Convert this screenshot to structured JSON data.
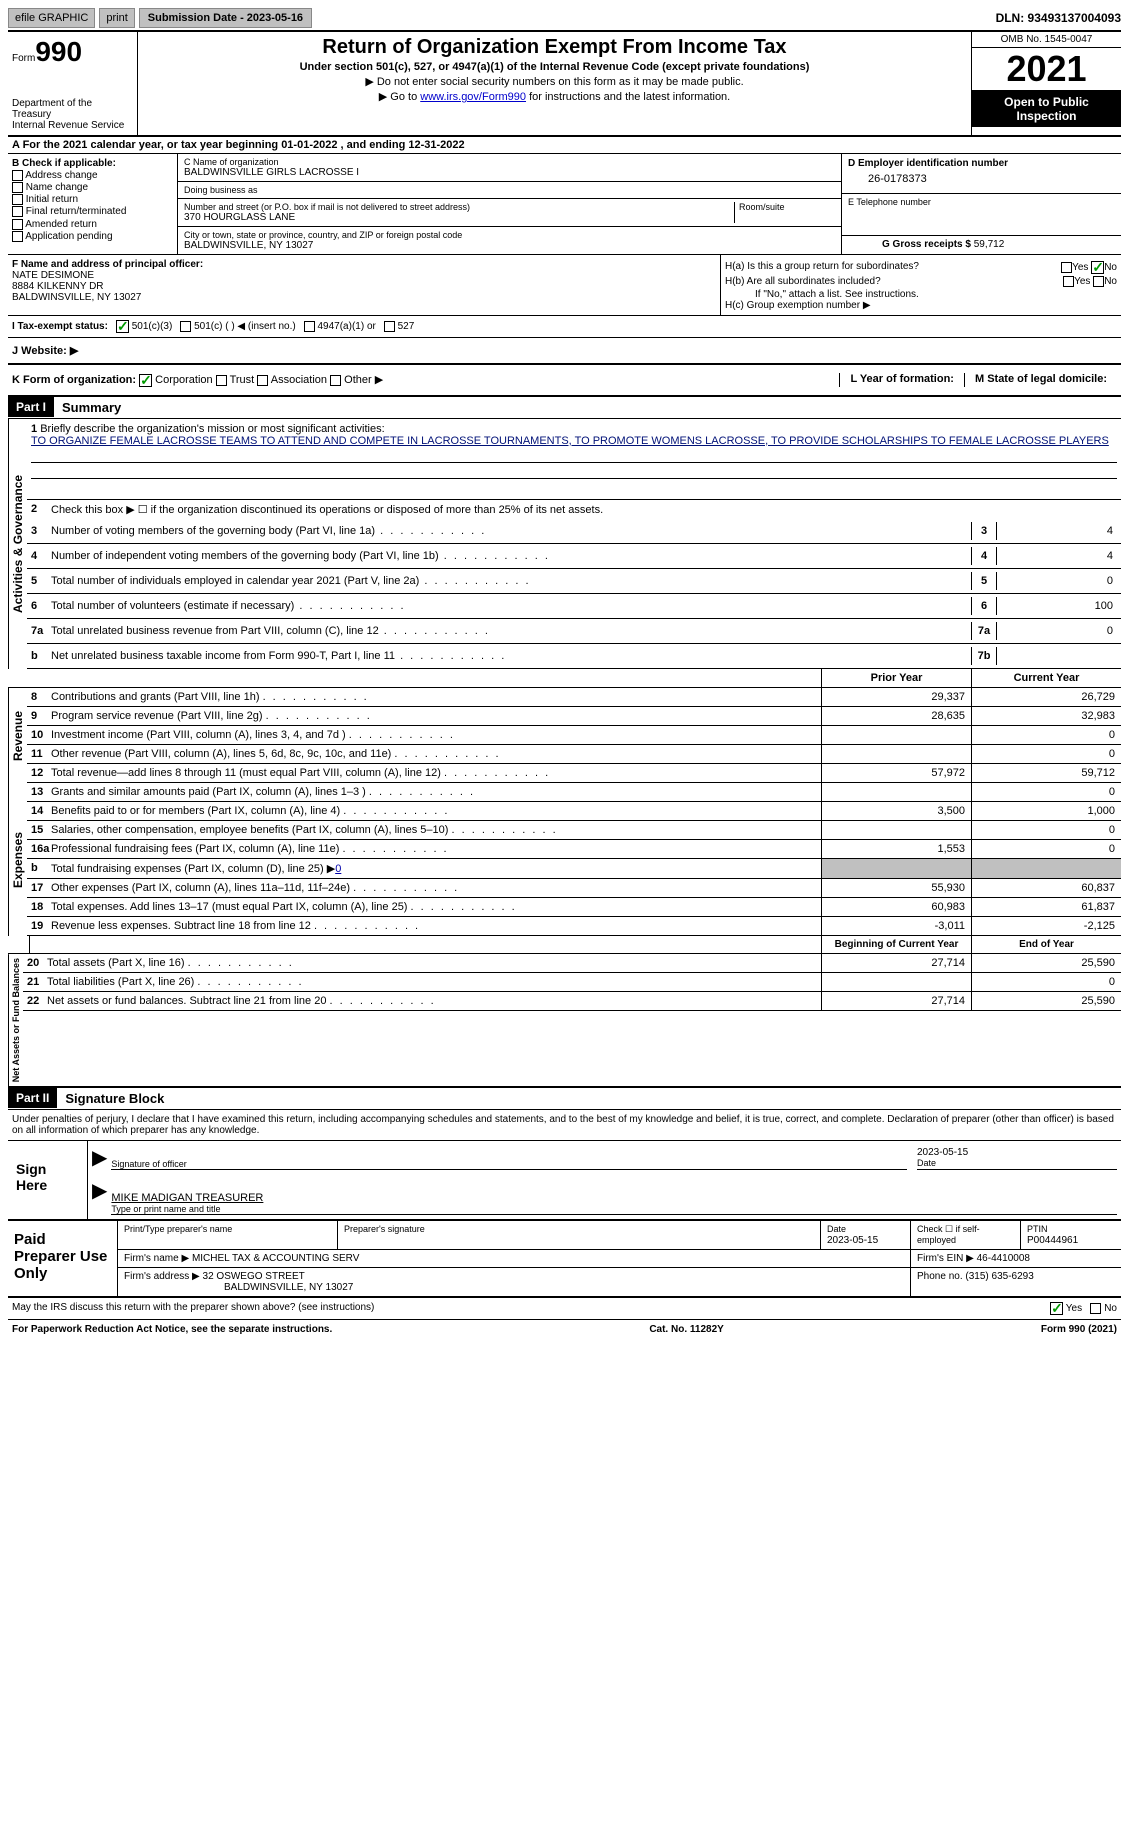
{
  "topbar": {
    "efile": "efile GRAPHIC",
    "print": "print",
    "submission": "Submission Date - 2023-05-16",
    "dln": "DLN: 93493137004093"
  },
  "header": {
    "form_label": "Form",
    "form_number": "990",
    "dept": "Department of the Treasury\nInternal Revenue Service",
    "title": "Return of Organization Exempt From Income Tax",
    "subtitle": "Under section 501(c), 527, or 4947(a)(1) of the Internal Revenue Code (except private foundations)",
    "inst1": "▶ Do not enter social security numbers on this form as it may be made public.",
    "inst2_pre": "▶ Go to ",
    "inst2_link": "www.irs.gov/Form990",
    "inst2_post": " for instructions and the latest information.",
    "omb": "OMB No. 1545-0047",
    "year": "2021",
    "open": "Open to Public Inspection"
  },
  "period": "A For the 2021 calendar year, or tax year beginning 01-01-2022    , and ending 12-31-2022",
  "section_b": {
    "label": "B Check if applicable:",
    "opts": [
      "Address change",
      "Name change",
      "Initial return",
      "Final return/terminated",
      "Amended return",
      "Application pending"
    ]
  },
  "section_c": {
    "name_label": "C Name of organization",
    "name": "BALDWINSVILLE GIRLS LACROSSE I",
    "dba_label": "Doing business as",
    "dba": "",
    "street_label": "Number and street (or P.O. box if mail is not delivered to street address)",
    "room_label": "Room/suite",
    "street": "370 HOURGLASS LANE",
    "city_label": "City or town, state or province, country, and ZIP or foreign postal code",
    "city": "BALDWINSVILLE, NY  13027"
  },
  "section_d": {
    "label": "D Employer identification number",
    "ein": "26-0178373",
    "tel_label": "E Telephone number",
    "tel": "",
    "gross_label": "G Gross receipts $",
    "gross": "59,712"
  },
  "section_f": {
    "label": "F Name and address of principal officer:",
    "name": "NATE DESIMONE",
    "addr1": "8884 KILKENNY DR",
    "addr2": "BALDWINSVILLE, NY  13027"
  },
  "section_h": {
    "ha": "H(a)  Is this a group return for subordinates?",
    "hb": "H(b)  Are all subordinates included?",
    "hb_note": "If \"No,\" attach a list. See instructions.",
    "hc": "H(c)  Group exemption number ▶"
  },
  "tax_exempt": {
    "label": "I   Tax-exempt status:",
    "opt1": "501(c)(3)",
    "opt2": "501(c) (  ) ◀ (insert no.)",
    "opt3": "4947(a)(1) or",
    "opt4": "527"
  },
  "website": {
    "label": "J   Website: ▶"
  },
  "k_row": {
    "k": "K Form of organization:",
    "corp": "Corporation",
    "trust": "Trust",
    "assoc": "Association",
    "other": "Other ▶",
    "l": "L Year of formation:",
    "m": "M State of legal domicile:"
  },
  "part1": {
    "label": "Part I",
    "title": "Summary",
    "vtext_gov": "Activities & Governance",
    "vtext_rev": "Revenue",
    "vtext_exp": "Expenses",
    "vtext_net": "Net Assets or Fund Balances",
    "q1": "Briefly describe the organization's mission or most significant activities:",
    "mission": "TO ORGANIZE FEMALE LACROSSE TEAMS TO ATTEND AND COMPETE IN LACROSSE TOURNAMENTS, TO PROMOTE WOMENS LACROSSE, TO PROVIDE SCHOLARSHIPS TO FEMALE LACROSSE PLAYERS",
    "q2": "Check this box ▶ ☐ if the organization discontinued its operations or disposed of more than 25% of its net assets.",
    "lines": [
      {
        "n": "3",
        "label": "Number of voting members of the governing body (Part VI, line 1a)",
        "box": "3",
        "val": "4"
      },
      {
        "n": "4",
        "label": "Number of independent voting members of the governing body (Part VI, line 1b)",
        "box": "4",
        "val": "4"
      },
      {
        "n": "5",
        "label": "Total number of individuals employed in calendar year 2021 (Part V, line 2a)",
        "box": "5",
        "val": "0"
      },
      {
        "n": "6",
        "label": "Total number of volunteers (estimate if necessary)",
        "box": "6",
        "val": "100"
      },
      {
        "n": "7a",
        "label": "Total unrelated business revenue from Part VIII, column (C), line 12",
        "box": "7a",
        "val": "0"
      },
      {
        "n": "b",
        "label": "Net unrelated business taxable income from Form 990-T, Part I, line 11",
        "box": "7b",
        "val": ""
      }
    ],
    "col_headers": {
      "prior": "Prior Year",
      "curr": "Current Year"
    },
    "rev_lines": [
      {
        "n": "8",
        "label": "Contributions and grants (Part VIII, line 1h)",
        "prior": "29,337",
        "curr": "26,729"
      },
      {
        "n": "9",
        "label": "Program service revenue (Part VIII, line 2g)",
        "prior": "28,635",
        "curr": "32,983"
      },
      {
        "n": "10",
        "label": "Investment income (Part VIII, column (A), lines 3, 4, and 7d )",
        "prior": "",
        "curr": "0"
      },
      {
        "n": "11",
        "label": "Other revenue (Part VIII, column (A), lines 5, 6d, 8c, 9c, 10c, and 11e)",
        "prior": "",
        "curr": "0"
      },
      {
        "n": "12",
        "label": "Total revenue—add lines 8 through 11 (must equal Part VIII, column (A), line 12)",
        "prior": "57,972",
        "curr": "59,712"
      }
    ],
    "exp_lines": [
      {
        "n": "13",
        "label": "Grants and similar amounts paid (Part IX, column (A), lines 1–3 )",
        "prior": "",
        "curr": "0"
      },
      {
        "n": "14",
        "label": "Benefits paid to or for members (Part IX, column (A), line 4)",
        "prior": "3,500",
        "curr": "1,000"
      },
      {
        "n": "15",
        "label": "Salaries, other compensation, employee benefits (Part IX, column (A), lines 5–10)",
        "prior": "",
        "curr": "0"
      },
      {
        "n": "16a",
        "label": "Professional fundraising fees (Part IX, column (A), line 11e)",
        "prior": "1,553",
        "curr": "0"
      },
      {
        "n": "b",
        "label": "Total fundraising expenses (Part IX, column (D), line 25) ▶0",
        "prior": "shaded",
        "curr": "shaded"
      },
      {
        "n": "17",
        "label": "Other expenses (Part IX, column (A), lines 11a–11d, 11f–24e)",
        "prior": "55,930",
        "curr": "60,837"
      },
      {
        "n": "18",
        "label": "Total expenses. Add lines 13–17 (must equal Part IX, column (A), line 25)",
        "prior": "60,983",
        "curr": "61,837"
      },
      {
        "n": "19",
        "label": "Revenue less expenses. Subtract line 18 from line 12",
        "prior": "-3,011",
        "curr": "-2,125"
      }
    ],
    "net_headers": {
      "prior": "Beginning of Current Year",
      "curr": "End of Year"
    },
    "net_lines": [
      {
        "n": "20",
        "label": "Total assets (Part X, line 16)",
        "prior": "27,714",
        "curr": "25,590"
      },
      {
        "n": "21",
        "label": "Total liabilities (Part X, line 26)",
        "prior": "",
        "curr": "0"
      },
      {
        "n": "22",
        "label": "Net assets or fund balances. Subtract line 21 from line 20",
        "prior": "27,714",
        "curr": "25,590"
      }
    ]
  },
  "part2": {
    "label": "Part II",
    "title": "Signature Block",
    "intro": "Under penalties of perjury, I declare that I have examined this return, including accompanying schedules and statements, and to the best of my knowledge and belief, it is true, correct, and complete. Declaration of preparer (other than officer) is based on all information of which preparer has any knowledge.",
    "sign_here": "Sign Here",
    "sig_officer": "Signature of officer",
    "sig_date": "2023-05-15",
    "date_label": "Date",
    "name_title": "MIKE MADIGAN  TREASURER",
    "name_title_label": "Type or print name and title",
    "paid_prep": "Paid Preparer Use Only",
    "prep_name_label": "Print/Type preparer's name",
    "prep_sig_label": "Preparer's signature",
    "prep_date_label": "Date",
    "prep_date": "2023-05-15",
    "check_self": "Check ☐ if self-employed",
    "ptin_label": "PTIN",
    "ptin": "P00444961",
    "firm_name_label": "Firm's name      ▶",
    "firm_name": "MICHEL TAX & ACCOUNTING SERV",
    "firm_ein_label": "Firm's EIN ▶",
    "firm_ein": "46-4410008",
    "firm_addr_label": "Firm's address ▶",
    "firm_addr1": "32 OSWEGO STREET",
    "firm_addr2": "BALDWINSVILLE, NY  13027",
    "phone_label": "Phone no.",
    "phone": "(315) 635-6293"
  },
  "bottom": {
    "discuss": "May the IRS discuss this return with the preparer shown above? (see instructions)",
    "yes": "Yes",
    "no": "No"
  },
  "footer": {
    "left": "For Paperwork Reduction Act Notice, see the separate instructions.",
    "mid": "Cat. No. 11282Y",
    "right": "Form 990 (2021)"
  }
}
